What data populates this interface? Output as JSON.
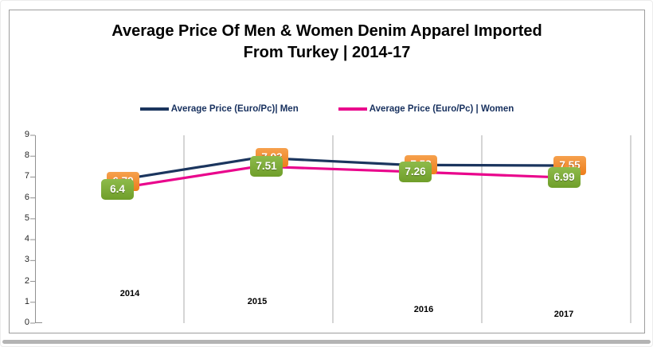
{
  "title": {
    "line1": "Average Price Of  Men & Women Denim Apparel Imported",
    "line2": "From Turkey | 2014-17"
  },
  "chart_data": {
    "type": "line",
    "categories": [
      "2014",
      "2015",
      "2016",
      "2017"
    ],
    "series": [
      {
        "name": "Average Price (Euro/Pc)| Men",
        "values": [
          6.79,
          7.93,
          7.58,
          7.55
        ],
        "point_labels": [
          "6.79",
          "7.93",
          "7.58",
          "7.55"
        ],
        "color": "#1b355e",
        "label_style": "orange"
      },
      {
        "name": "Average Price (Euro/Pc) | Women",
        "values": [
          6.4,
          7.51,
          7.26,
          6.99
        ],
        "point_labels": [
          "6.4",
          "7.51",
          "7.26",
          "6.99"
        ],
        "color": "#e9058c",
        "label_style": "green"
      }
    ],
    "ylabel": "",
    "xlabel": "",
    "ylim": [
      0,
      9
    ],
    "ytick_step": 1,
    "grid": "vertical category separators",
    "legend_position": "top-center"
  },
  "colors": {
    "men_line": "#1b355e",
    "women_line": "#e9058c",
    "men_label_bg": "#ed7d1b",
    "women_label_bg": "#76a433",
    "gridline": "#ababab",
    "axis": "#909090",
    "frame_border": "#9d9d9d"
  }
}
